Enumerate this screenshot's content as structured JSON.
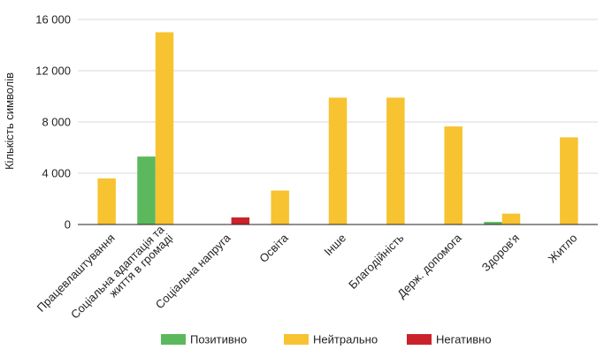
{
  "chart_data": {
    "type": "bar",
    "title": "",
    "xlabel": "",
    "ylabel": "Кількість символів",
    "ylim": [
      0,
      16000
    ],
    "yticks": [
      {
        "value": 0,
        "label": "0"
      },
      {
        "value": 4000,
        "label": "4 000"
      },
      {
        "value": 8000,
        "label": "8 000"
      },
      {
        "value": 12000,
        "label": "12 000"
      },
      {
        "value": 16000,
        "label": "16 000"
      }
    ],
    "grid": true,
    "legend_position": "bottom",
    "categories": [
      [
        "Працевлаштування"
      ],
      [
        "Соціальна адаптація та",
        "життя в громаді"
      ],
      [
        "Соціальна напруга"
      ],
      [
        "Освіта"
      ],
      [
        "Інше"
      ],
      [
        "Благодійність"
      ],
      [
        "Держ. допомога"
      ],
      [
        "Здоров'я"
      ],
      [
        "Житло"
      ]
    ],
    "series": [
      {
        "name": "Позитивно",
        "color": "#5cb85c",
        "values": [
          0,
          5300,
          0,
          0,
          0,
          0,
          0,
          200,
          0
        ]
      },
      {
        "name": "Нейтрально",
        "color": "#f7c331",
        "values": [
          3600,
          15000,
          0,
          2650,
          9900,
          9900,
          7650,
          850,
          6800
        ]
      },
      {
        "name": "Негативно",
        "color": "#c9222b",
        "values": [
          0,
          0,
          550,
          0,
          0,
          0,
          0,
          0,
          0
        ]
      }
    ]
  }
}
